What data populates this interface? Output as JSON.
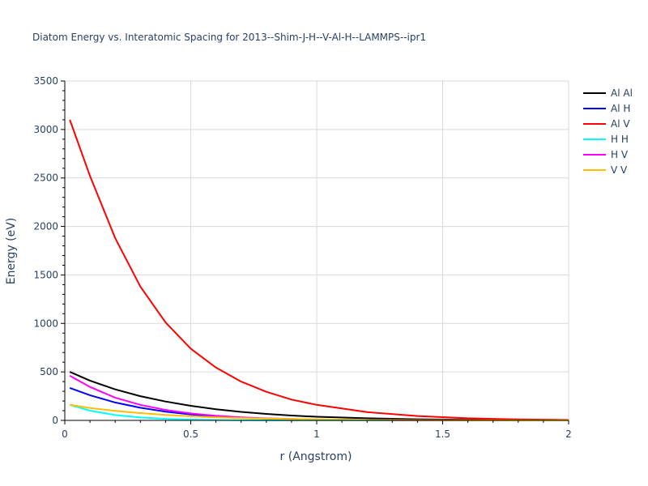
{
  "chart_data": {
    "type": "line",
    "title": "Diatom Energy vs. Interatomic Spacing for 2013--Shim-J-H--V-Al-H--LAMMPS--ipr1",
    "xlabel": "r (Angstrom)",
    "ylabel": "Energy (eV)",
    "xlim": [
      0,
      2
    ],
    "ylim": [
      0,
      3500
    ],
    "xticks": [
      0,
      0.5,
      1,
      1.5,
      2
    ],
    "xtick_labels": [
      "0",
      "0.5",
      "1",
      "1.5",
      "2"
    ],
    "yticks": [
      0,
      500,
      1000,
      1500,
      2000,
      2500,
      3000,
      3500
    ],
    "ytick_labels": [
      "0",
      "500",
      "1000",
      "1500",
      "2000",
      "2500",
      "3000",
      "3500"
    ],
    "grid": true,
    "legend_position": "top-right",
    "x": [
      0.02,
      0.1,
      0.2,
      0.3,
      0.4,
      0.5,
      0.6,
      0.7,
      0.8,
      0.9,
      1.0,
      1.2,
      1.4,
      1.6,
      1.8,
      2.0
    ],
    "series": [
      {
        "name": "Al Al",
        "color": "#000000",
        "values": [
          500,
          410,
          320,
          250,
          195,
          150,
          115,
          88,
          67,
          50,
          38,
          22,
          12,
          6,
          3,
          1
        ]
      },
      {
        "name": "Al H",
        "color": "#0000ff",
        "values": [
          335,
          260,
          185,
          130,
          90,
          62,
          42,
          28,
          19,
          12,
          8,
          3,
          1,
          0,
          0,
          0
        ]
      },
      {
        "name": "Al V",
        "color": "#ff0000",
        "values": [
          3100,
          2520,
          1880,
          1380,
          1010,
          740,
          545,
          400,
          295,
          215,
          160,
          85,
          45,
          22,
          10,
          4
        ]
      },
      {
        "name": "H H",
        "color": "#00ffff",
        "values": [
          160,
          100,
          55,
          30,
          16,
          8,
          4,
          2,
          1,
          0,
          0,
          0,
          0,
          0,
          0,
          0
        ]
      },
      {
        "name": "H V",
        "color": "#ff00ff",
        "values": [
          460,
          345,
          235,
          160,
          108,
          72,
          48,
          32,
          21,
          14,
          9,
          4,
          1,
          0,
          0,
          0
        ]
      },
      {
        "name": "V V",
        "color": "#ffbf00",
        "values": [
          160,
          128,
          98,
          75,
          57,
          43,
          32,
          24,
          18,
          13,
          10,
          5,
          2,
          1,
          0,
          0
        ]
      }
    ]
  }
}
